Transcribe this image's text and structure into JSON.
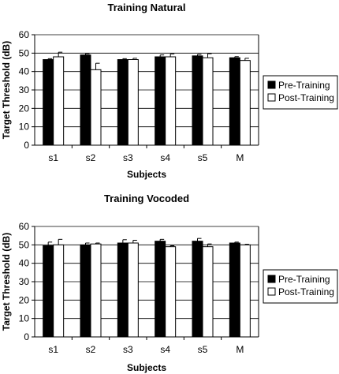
{
  "chart_data": [
    {
      "type": "bar",
      "title": "Training Natural",
      "xlabel": "Subjects",
      "ylabel": "Target Threshold (dB)",
      "ylim": [
        0,
        60
      ],
      "yticks": [
        0,
        10,
        20,
        30,
        40,
        50,
        60
      ],
      "grid": true,
      "legend_position": "right",
      "categories": [
        "s1",
        "s2",
        "s3",
        "s4",
        "s5",
        "M"
      ],
      "series": [
        {
          "name": "Pre-Training",
          "color": "#000000",
          "values": [
            46.5,
            49,
            46.5,
            48,
            48.5,
            47.5
          ],
          "errors": [
            0.5,
            0.7,
            0.5,
            1.0,
            0.8,
            0.6
          ]
        },
        {
          "name": "Post-Training",
          "color": "#ffffff",
          "values": [
            48,
            41,
            46.5,
            48,
            47.5,
            46
          ],
          "errors": [
            2.5,
            3.5,
            0.7,
            1.6,
            2.2,
            1.2
          ]
        }
      ]
    },
    {
      "type": "bar",
      "title": "Training Vocoded",
      "xlabel": "Subjects",
      "ylabel": "Target Threshold (dB)",
      "ylim": [
        0,
        60
      ],
      "yticks": [
        0,
        10,
        20,
        30,
        40,
        50,
        60
      ],
      "grid": true,
      "legend_position": "right",
      "categories": [
        "s1",
        "s2",
        "s3",
        "s4",
        "s5",
        "M"
      ],
      "series": [
        {
          "name": "Pre-Training",
          "color": "#000000",
          "values": [
            49.5,
            50,
            51,
            52,
            52,
            51
          ],
          "errors": [
            2.0,
            1.0,
            1.8,
            1.0,
            1.5,
            0.5
          ]
        },
        {
          "name": "Post-Training",
          "color": "#ffffff",
          "values": [
            50,
            50.5,
            51,
            49,
            49,
            50
          ],
          "errors": [
            3.0,
            0.5,
            1.5,
            0.5,
            1.5,
            0.3
          ]
        }
      ]
    }
  ]
}
